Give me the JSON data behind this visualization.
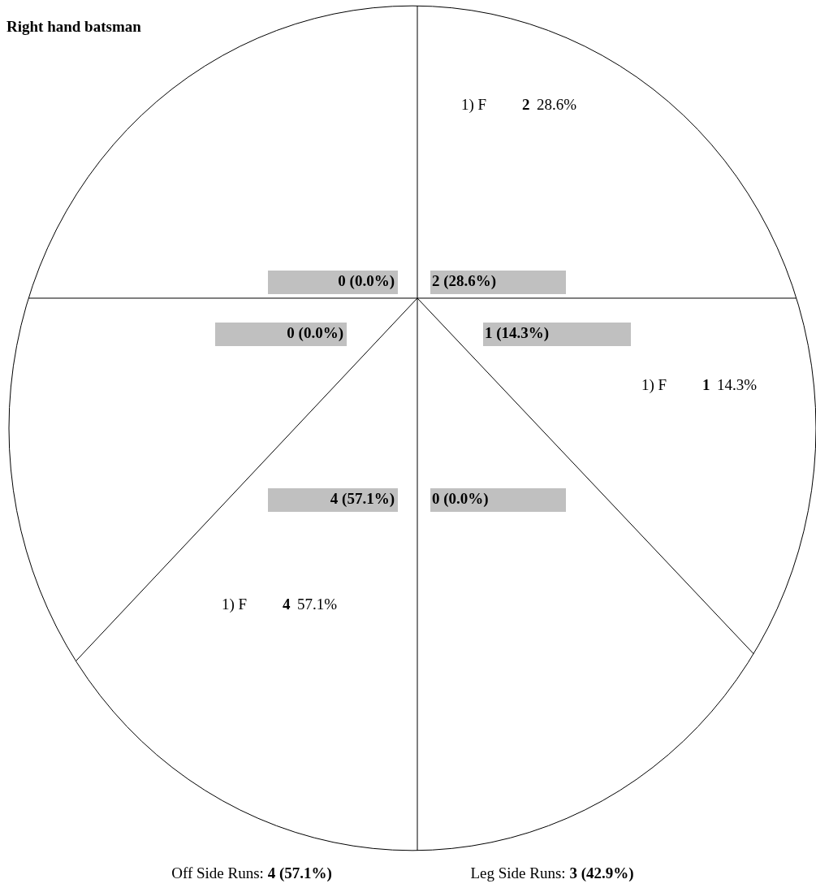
{
  "chart_data": {
    "type": "other",
    "title": "Right hand batsman",
    "categories": [
      null,
      null,
      null,
      null,
      null,
      null
    ],
    "series": [
      {
        "name": "1) F",
        "values": [
          2,
          1,
          null,
          4,
          null,
          null
        ]
      }
    ],
    "data_labels": true,
    "annotations": [
      "2 (28.6%)",
      "1 (14.3%)",
      "0 (0.0%)",
      "4 (57.1%)",
      "0 (0.0%)",
      "0 (0.0%)",
      "28.6%",
      "14.3%",
      "57.1%",
      "Off Side Runs: 4 (57.1%)",
      "Leg Side Runs: 3 (42.9%)"
    ]
  }
}
